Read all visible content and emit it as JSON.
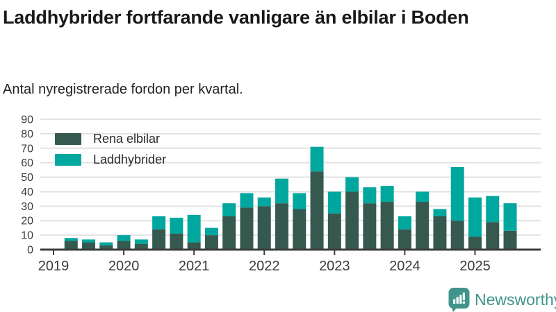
{
  "header": {
    "title": "Laddhybrider fortfarande vanligare än elbilar i Boden",
    "subtitle": "Antal nyregistrerade fordon per kvartal."
  },
  "footer": {
    "brand": "Newsworthy"
  },
  "colors": {
    "rena_elbilar": "#35594F",
    "laddhybrider": "#00A79E",
    "axis": "#3D3D3D",
    "grid": "#E2E2E2",
    "tick_text": "#3B3B3B",
    "logo": "#40948C",
    "background": "#FFFFFF"
  },
  "chart_data": {
    "type": "bar",
    "stacked": true,
    "title": "Laddhybrider fortfarande vanligare än elbilar i Boden",
    "subtitle": "Antal nyregistrerade fordon per kvartal.",
    "xlabel": "",
    "ylabel": "",
    "ylim": [
      0,
      90
    ],
    "yticks": [
      0,
      10,
      20,
      30,
      40,
      50,
      60,
      70,
      80,
      90
    ],
    "grid": true,
    "legend_position": "top-left",
    "x": [
      "2019 K1",
      "2019 K2",
      "2019 K3",
      "2019 K4",
      "2020 K1",
      "2020 K2",
      "2020 K3",
      "2020 K4",
      "2021 K1",
      "2021 K2",
      "2021 K3",
      "2021 K4",
      "2022 K1",
      "2022 K2",
      "2022 K3",
      "2022 K4",
      "2023 K1",
      "2023 K2",
      "2023 K3",
      "2023 K4",
      "2024 K1",
      "2024 K2",
      "2024 K3",
      "2024 K4",
      "2025 K1",
      "2025 K2",
      "2025 K3"
    ],
    "xticks": [
      "2019",
      "2020",
      "2021",
      "2022",
      "2023",
      "2024",
      "2025"
    ],
    "series": [
      {
        "name": "Rena elbilar",
        "color_key": "rena_elbilar",
        "values": [
          0,
          6,
          5,
          3,
          6,
          4,
          14,
          11,
          5,
          10,
          23,
          29,
          30,
          32,
          28,
          54,
          25,
          40,
          32,
          33,
          14,
          33,
          23,
          20,
          9,
          19,
          13
        ]
      },
      {
        "name": "Laddhybrider",
        "color_key": "laddhybrider",
        "values": [
          0,
          2,
          2,
          2,
          4,
          3,
          9,
          11,
          19,
          5,
          9,
          10,
          6,
          17,
          11,
          17,
          15,
          10,
          11,
          11,
          9,
          7,
          5,
          37,
          27,
          18,
          19
        ]
      }
    ]
  }
}
